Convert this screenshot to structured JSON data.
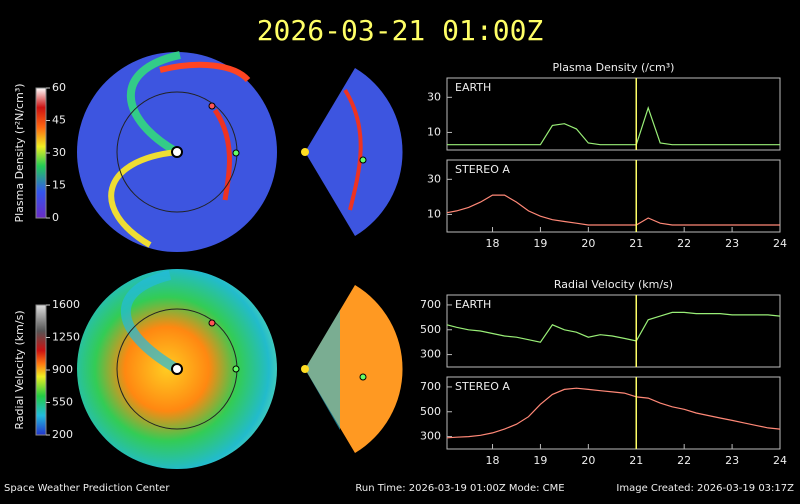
{
  "header": {
    "title": "2026-03-21 01:00Z"
  },
  "colorbars": [
    {
      "label": "Plasma Density (r²N/cm³)",
      "range": [
        0,
        60
      ],
      "ticks": [
        0,
        15,
        30,
        45,
        60
      ]
    },
    {
      "label": "Radial Velocity (km/s)",
      "range": [
        200,
        1600
      ],
      "ticks": [
        200,
        550,
        900,
        1250,
        1600
      ]
    }
  ],
  "footer": {
    "left": "Space Weather Prediction Center",
    "center": "Run Time: 2026-03-19 01:00Z  Mode: CME",
    "right": "Image Created: 2026-03-19 03:17Z"
  },
  "chart_data": [
    {
      "type": "line",
      "title": "Plasma Density (/cm³)",
      "xlim": [
        17.05,
        24
      ],
      "ylim": [
        0,
        41
      ],
      "yticks": [
        10,
        30
      ],
      "marker_x": 21,
      "marker_color": "#ffff66",
      "x": [
        17.05,
        17.25,
        17.5,
        17.75,
        18,
        18.25,
        18.5,
        18.75,
        19,
        19.25,
        19.5,
        19.75,
        20,
        20.25,
        20.5,
        20.75,
        21,
        21.25,
        21.5,
        21.75,
        22,
        22.25,
        22.5,
        22.75,
        23,
        23.25,
        23.5,
        23.75,
        24
      ],
      "series": [
        {
          "name": "EARTH",
          "color": "#99ee77",
          "values": [
            3,
            3,
            3,
            3,
            3,
            3,
            3,
            3,
            3,
            14,
            15,
            12,
            4,
            3,
            3,
            3,
            3,
            24,
            4,
            3,
            3,
            3,
            3,
            3,
            3,
            3,
            3,
            3,
            3
          ]
        }
      ]
    },
    {
      "type": "line",
      "xlim": [
        17.05,
        24
      ],
      "ylim": [
        0,
        41
      ],
      "yticks": [
        10,
        30
      ],
      "xticks": [
        18,
        19,
        20,
        21,
        22,
        23,
        24
      ],
      "marker_x": 21,
      "marker_color": "#ffff66",
      "x": [
        17.05,
        17.25,
        17.5,
        17.75,
        18,
        18.25,
        18.5,
        18.75,
        19,
        19.25,
        19.5,
        19.75,
        20,
        20.25,
        20.5,
        20.75,
        21,
        21.25,
        21.5,
        21.75,
        22,
        22.25,
        22.5,
        22.75,
        23,
        23.25,
        23.5,
        23.75,
        24
      ],
      "series": [
        {
          "name": "STEREO A",
          "color": "#ff8877",
          "values": [
            11,
            12,
            14,
            17,
            21,
            21,
            17,
            12,
            9,
            7,
            6,
            5,
            4,
            4,
            4,
            4,
            4,
            8,
            5,
            4,
            4,
            4,
            4,
            4,
            4,
            4,
            4,
            4,
            4
          ]
        }
      ]
    },
    {
      "type": "line",
      "title": "Radial Velocity (km/s)",
      "xlim": [
        17.05,
        24
      ],
      "ylim": [
        200,
        780
      ],
      "yticks": [
        300,
        500,
        700
      ],
      "marker_x": 21,
      "marker_color": "#ffff66",
      "x": [
        17.05,
        17.25,
        17.5,
        17.75,
        18,
        18.25,
        18.5,
        18.75,
        19,
        19.25,
        19.5,
        19.75,
        20,
        20.25,
        20.5,
        20.75,
        21,
        21.25,
        21.5,
        21.75,
        22,
        22.25,
        22.5,
        22.75,
        23,
        23.25,
        23.5,
        23.75,
        24
      ],
      "series": [
        {
          "name": "EARTH",
          "color": "#99ee77",
          "values": [
            540,
            520,
            500,
            490,
            470,
            450,
            440,
            420,
            400,
            540,
            500,
            480,
            440,
            460,
            450,
            430,
            410,
            580,
            610,
            640,
            640,
            630,
            630,
            630,
            620,
            620,
            620,
            620,
            610
          ]
        }
      ]
    },
    {
      "type": "line",
      "xlim": [
        17.05,
        24
      ],
      "ylim": [
        200,
        780
      ],
      "yticks": [
        300,
        500,
        700
      ],
      "xticks": [
        18,
        19,
        20,
        21,
        22,
        23,
        24
      ],
      "marker_x": 21,
      "marker_color": "#ffff66",
      "x": [
        17.05,
        17.25,
        17.5,
        17.75,
        18,
        18.25,
        18.5,
        18.75,
        19,
        19.25,
        19.5,
        19.75,
        20,
        20.25,
        20.5,
        20.75,
        21,
        21.25,
        21.5,
        21.75,
        22,
        22.25,
        22.5,
        22.75,
        23,
        23.25,
        23.5,
        23.75,
        24
      ],
      "series": [
        {
          "name": "STEREO A",
          "color": "#ff8877",
          "values": [
            290,
            295,
            300,
            310,
            330,
            360,
            400,
            460,
            560,
            640,
            680,
            690,
            680,
            670,
            660,
            650,
            620,
            610,
            570,
            540,
            520,
            490,
            470,
            450,
            430,
            410,
            390,
            370,
            360
          ]
        }
      ]
    }
  ]
}
